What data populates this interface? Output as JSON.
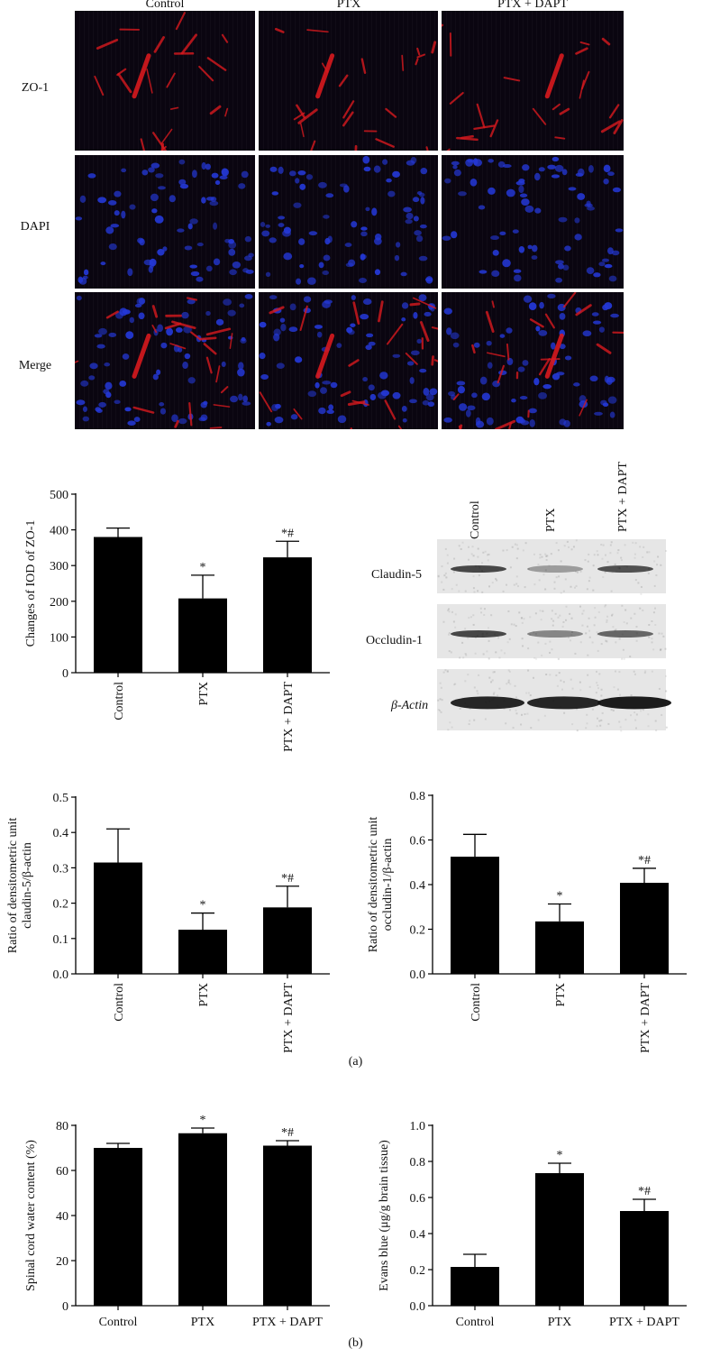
{
  "figure": {
    "panel_a_label": "(a)",
    "panel_b_label": "(b)"
  },
  "micrographs": {
    "columns": [
      "Control",
      "PTX",
      "PTX + DAPT"
    ],
    "rows": [
      "ZO-1",
      "DAPI",
      "Merge"
    ],
    "colors": {
      "zo1": "#d8191e",
      "dapi": "#2438d6",
      "background": "#0a0510"
    }
  },
  "western_blot": {
    "lanes": [
      "Control",
      "PTX",
      "PTX + DAPT"
    ],
    "rows": [
      "Claudin-5",
      "Occludin-1",
      "β-Actin"
    ]
  },
  "chart_data": [
    {
      "id": "zo1",
      "type": "bar",
      "ylabel": "Changes of IOD of ZO-1",
      "categories": [
        "Control",
        "PTX",
        "PTX + DAPT"
      ],
      "values": [
        380,
        208,
        323
      ],
      "errors": [
        25,
        65,
        45
      ],
      "annotations": [
        "",
        "*",
        "*#"
      ],
      "ylim": [
        0,
        500
      ],
      "yticks": [
        0,
        100,
        200,
        300,
        400,
        500
      ],
      "ytick_labels": [
        "0",
        "100",
        "200",
        "300",
        "400",
        "500"
      ],
      "xtick_rotation": "vertical",
      "grid": false
    },
    {
      "id": "claudin5",
      "type": "bar",
      "ylabel": "Ratio of densitometric unit claudin-5/β-actin",
      "categories": [
        "Control",
        "PTX",
        "PTX + DAPT"
      ],
      "values": [
        0.315,
        0.125,
        0.188
      ],
      "errors": [
        0.095,
        0.047,
        0.06
      ],
      "annotations": [
        "",
        "*",
        "*#"
      ],
      "ylim": [
        0,
        0.5
      ],
      "yticks": [
        0,
        0.1,
        0.2,
        0.3,
        0.4,
        0.5
      ],
      "ytick_labels": [
        "0.0",
        "0.1",
        "0.2",
        "0.3",
        "0.4",
        "0.5"
      ],
      "xtick_rotation": "vertical",
      "grid": false
    },
    {
      "id": "occludin1",
      "type": "bar",
      "ylabel": "Ratio of densitometric unit occludin-1/β-actin",
      "categories": [
        "Control",
        "PTX",
        "PTX + DAPT"
      ],
      "values": [
        0.525,
        0.235,
        0.408
      ],
      "errors": [
        0.1,
        0.078,
        0.065
      ],
      "annotations": [
        "",
        "*",
        "*#"
      ],
      "ylim": [
        0,
        0.8
      ],
      "yticks": [
        0,
        0.2,
        0.4,
        0.6,
        0.8
      ],
      "ytick_labels": [
        "0.0",
        "0.2",
        "0.4",
        "0.6",
        "0.8"
      ],
      "xtick_rotation": "vertical",
      "grid": false
    },
    {
      "id": "water",
      "type": "bar",
      "ylabel": "Spinal cord water content (%)",
      "categories": [
        "Control",
        "PTX",
        "PTX + DAPT"
      ],
      "values": [
        70,
        76.5,
        71
      ],
      "errors": [
        2,
        2.3,
        2.2
      ],
      "annotations": [
        "",
        "*",
        "*#"
      ],
      "ylim": [
        0,
        80
      ],
      "yticks": [
        0,
        20,
        40,
        60,
        80
      ],
      "ytick_labels": [
        "0",
        "20",
        "40",
        "60",
        "80"
      ],
      "xtick_rotation": "horizontal",
      "grid": false
    },
    {
      "id": "evans",
      "type": "bar",
      "ylabel": "Evans blue (μg/g brain tissue)",
      "categories": [
        "Control",
        "PTX",
        "PTX + DAPT"
      ],
      "values": [
        0.215,
        0.735,
        0.525
      ],
      "errors": [
        0.07,
        0.055,
        0.065
      ],
      "annotations": [
        "",
        "*",
        "*#"
      ],
      "ylim": [
        0,
        1.0
      ],
      "yticks": [
        0,
        0.2,
        0.4,
        0.6,
        0.8,
        1.0
      ],
      "ytick_labels": [
        "0.0",
        "0.2",
        "0.4",
        "0.6",
        "0.8",
        "1.0"
      ],
      "xtick_rotation": "horizontal",
      "grid": false
    }
  ]
}
